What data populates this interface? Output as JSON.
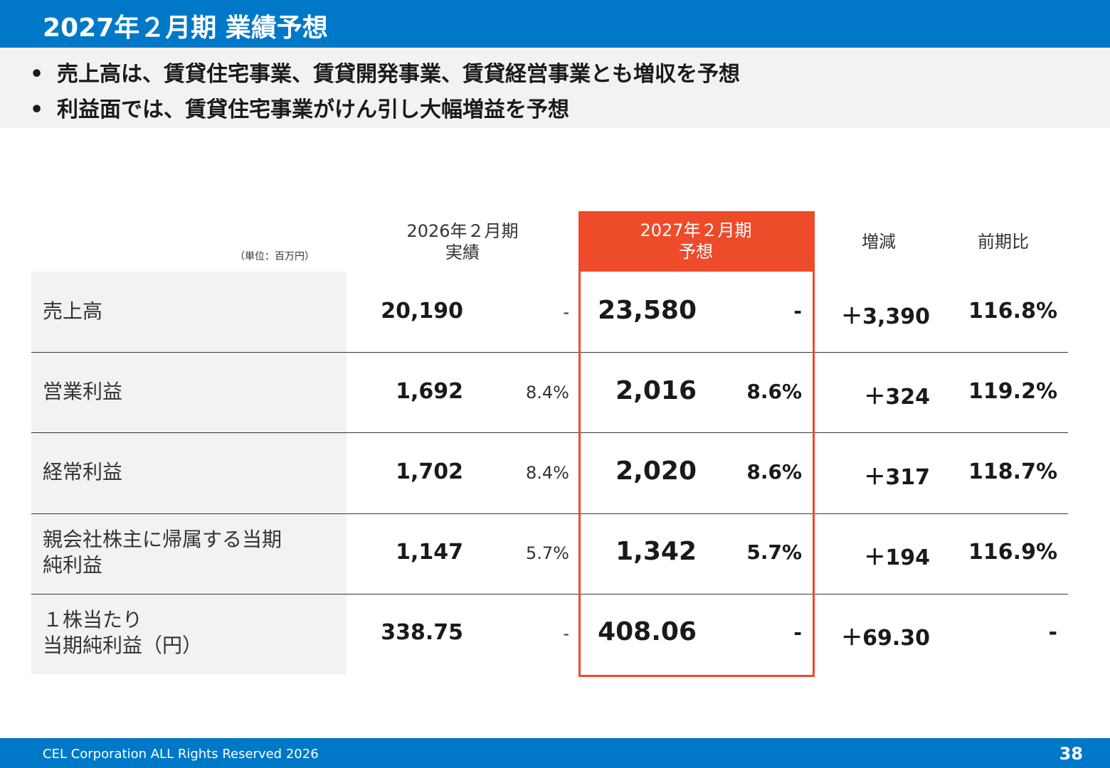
{
  "header": {
    "title": "2027年２月期 業績予想"
  },
  "bullets": [
    "売上高は、賃貸住宅事業、賃貸開発事業、賃貸経営事業とも増収を予想",
    "利益面では、賃貸住宅事業がけん引し大幅増益を予想"
  ],
  "bullet_glyph": "•",
  "table": {
    "unit": "（単位：百万円）",
    "headers": {
      "prev_line1": "2026年２月期",
      "prev_line2": "実績",
      "forecast_line1": "2027年２月期",
      "forecast_line2": "予想",
      "diff": "増減",
      "ratio": "前期比"
    },
    "rows": [
      {
        "label_line1": "売上高",
        "label_line2": "",
        "prev": "20,190",
        "prev_pct": "-",
        "forecast": "23,580",
        "forecast_pct": "-",
        "diff": "＋3,390",
        "ratio": "116.8%"
      },
      {
        "label_line1": "営業利益",
        "label_line2": "",
        "prev": "1,692",
        "prev_pct": "8.4%",
        "forecast": "2,016",
        "forecast_pct": "8.6%",
        "diff": "＋324",
        "ratio": "119.2%"
      },
      {
        "label_line1": "経常利益",
        "label_line2": "",
        "prev": "1,702",
        "prev_pct": "8.4%",
        "forecast": "2,020",
        "forecast_pct": "8.6%",
        "diff": "＋317",
        "ratio": "118.7%"
      },
      {
        "label_line1": "親会社株主に帰属する当期",
        "label_line2": "純利益",
        "prev": "1,147",
        "prev_pct": "5.7%",
        "forecast": "1,342",
        "forecast_pct": "5.7%",
        "diff": "＋194",
        "ratio": "116.9%"
      },
      {
        "label_line1": "１株当たり",
        "label_line2": "当期純利益（円）",
        "prev": "338.75",
        "prev_pct": "-",
        "forecast": "408.06",
        "forecast_pct": "-",
        "diff": "＋69.30",
        "ratio": "-"
      }
    ]
  },
  "footer": {
    "copyright": "CEL Corporation ALL Rights Reserved 2026",
    "page": "38"
  },
  "colors": {
    "brand_blue": "#0078c8",
    "forecast_accent": "#ee4b2b",
    "panel_gray": "#f2f2f2"
  }
}
